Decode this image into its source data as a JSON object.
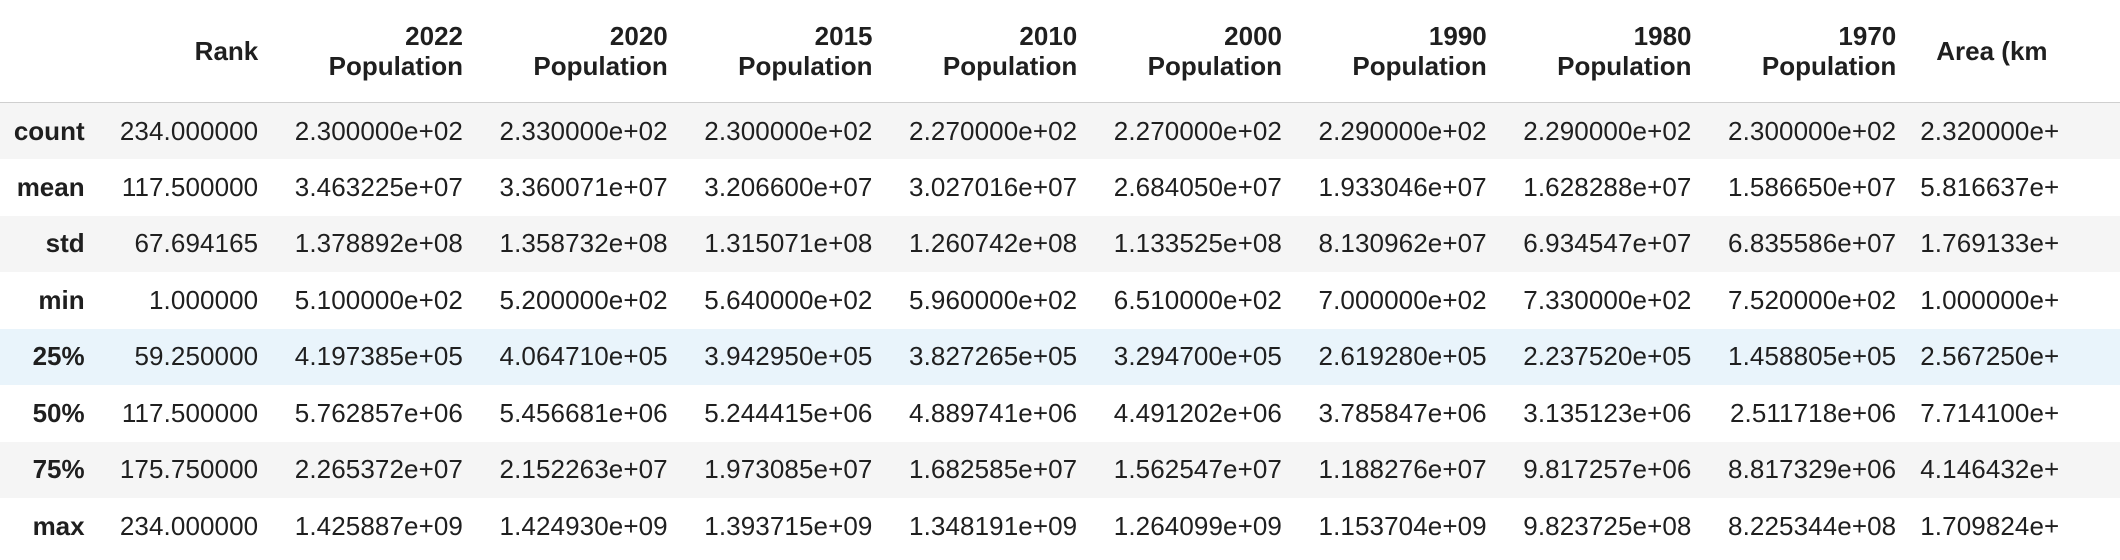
{
  "table": {
    "columns": [
      {
        "key": "rank",
        "lines": [
          "Rank"
        ]
      },
      {
        "key": "p2022",
        "lines": [
          "2022",
          "Population"
        ]
      },
      {
        "key": "p2020",
        "lines": [
          "2020",
          "Population"
        ]
      },
      {
        "key": "p2015",
        "lines": [
          "2015",
          "Population"
        ]
      },
      {
        "key": "p2010",
        "lines": [
          "2010",
          "Population"
        ]
      },
      {
        "key": "p2000",
        "lines": [
          "2000",
          "Population"
        ]
      },
      {
        "key": "p1990",
        "lines": [
          "1990",
          "Population"
        ]
      },
      {
        "key": "p1980",
        "lines": [
          "1980",
          "Population"
        ]
      },
      {
        "key": "p1970",
        "lines": [
          "1970",
          "Population"
        ]
      },
      {
        "key": "area",
        "lines": [
          "Area (km"
        ]
      }
    ],
    "rows": [
      {
        "label": "count",
        "values": [
          "234.000000",
          "2.300000e+02",
          "2.330000e+02",
          "2.300000e+02",
          "2.270000e+02",
          "2.270000e+02",
          "2.290000e+02",
          "2.290000e+02",
          "2.300000e+02",
          "2.320000e+"
        ]
      },
      {
        "label": "mean",
        "values": [
          "117.500000",
          "3.463225e+07",
          "3.360071e+07",
          "3.206600e+07",
          "3.027016e+07",
          "2.684050e+07",
          "1.933046e+07",
          "1.628288e+07",
          "1.586650e+07",
          "5.816637e+"
        ]
      },
      {
        "label": "std",
        "values": [
          "67.694165",
          "1.378892e+08",
          "1.358732e+08",
          "1.315071e+08",
          "1.260742e+08",
          "1.133525e+08",
          "8.130962e+07",
          "6.934547e+07",
          "6.835586e+07",
          "1.769133e+"
        ]
      },
      {
        "label": "min",
        "values": [
          "1.000000",
          "5.100000e+02",
          "5.200000e+02",
          "5.640000e+02",
          "5.960000e+02",
          "6.510000e+02",
          "7.000000e+02",
          "7.330000e+02",
          "7.520000e+02",
          "1.000000e+"
        ]
      },
      {
        "label": "25%",
        "values": [
          "59.250000",
          "4.197385e+05",
          "4.064710e+05",
          "3.942950e+05",
          "3.827265e+05",
          "3.294700e+05",
          "2.619280e+05",
          "2.237520e+05",
          "1.458805e+05",
          "2.567250e+"
        ]
      },
      {
        "label": "50%",
        "values": [
          "117.500000",
          "5.762857e+06",
          "5.456681e+06",
          "5.244415e+06",
          "4.889741e+06",
          "4.491202e+06",
          "3.785847e+06",
          "3.135123e+06",
          "2.511718e+06",
          "7.714100e+"
        ]
      },
      {
        "label": "75%",
        "values": [
          "175.750000",
          "2.265372e+07",
          "2.152263e+07",
          "1.973085e+07",
          "1.682585e+07",
          "1.562547e+07",
          "1.188276e+07",
          "9.817257e+06",
          "8.817329e+06",
          "4.146432e+"
        ]
      },
      {
        "label": "max",
        "values": [
          "234.000000",
          "1.425887e+09",
          "1.424930e+09",
          "1.393715e+09",
          "1.348191e+09",
          "1.264099e+09",
          "1.153704e+09",
          "9.823725e+08",
          "8.225344e+08",
          "1.709824e+"
        ]
      }
    ],
    "highlighted_row": "25%",
    "colors": {
      "stripe": "#f5f5f5",
      "highlight": "#e9f4fb",
      "text": "#1f1f1f",
      "header_border": "#cfcfcf"
    }
  }
}
